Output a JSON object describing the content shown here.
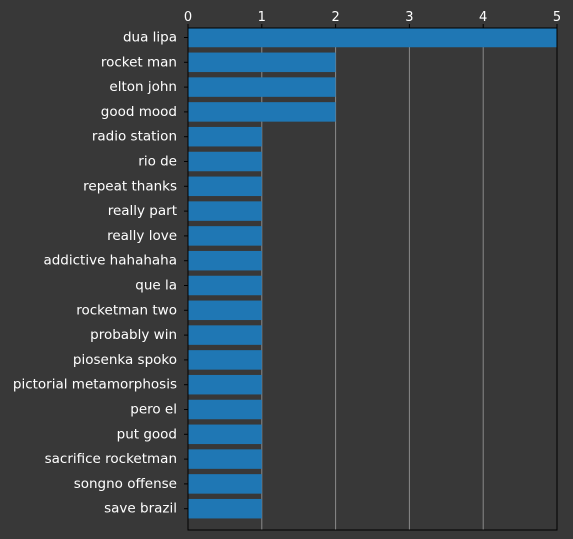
{
  "chart_data": {
    "type": "bar",
    "orientation": "horizontal",
    "title": "",
    "xlabel": "",
    "ylabel": "",
    "categories": [
      "dua lipa",
      "rocket man",
      "elton john",
      "good mood",
      "radio station",
      "rio de",
      "repeat thanks",
      "really part",
      "really love",
      "addictive hahahaha",
      "que la",
      "rocketman two",
      "probably win",
      "piosenka spoko",
      "pictorial metamorphosis",
      "pero el",
      "put good",
      "sacrifice rocketman",
      "songno offense",
      "save brazil"
    ],
    "values": [
      5,
      2,
      2,
      2,
      1,
      1,
      1,
      1,
      1,
      1,
      1,
      1,
      1,
      1,
      1,
      1,
      1,
      1,
      1,
      1
    ],
    "xlim": [
      0,
      5
    ],
    "xticks": [
      "0",
      "1",
      "2",
      "3",
      "4",
      "5"
    ],
    "x_axis_position": "top",
    "grid": "vertical",
    "legend": "none",
    "colors": {
      "background": "#383838",
      "bar": "#1f77b4",
      "grid": "#8a8a8a",
      "axis": "#000000",
      "text": "#ffffff"
    }
  }
}
